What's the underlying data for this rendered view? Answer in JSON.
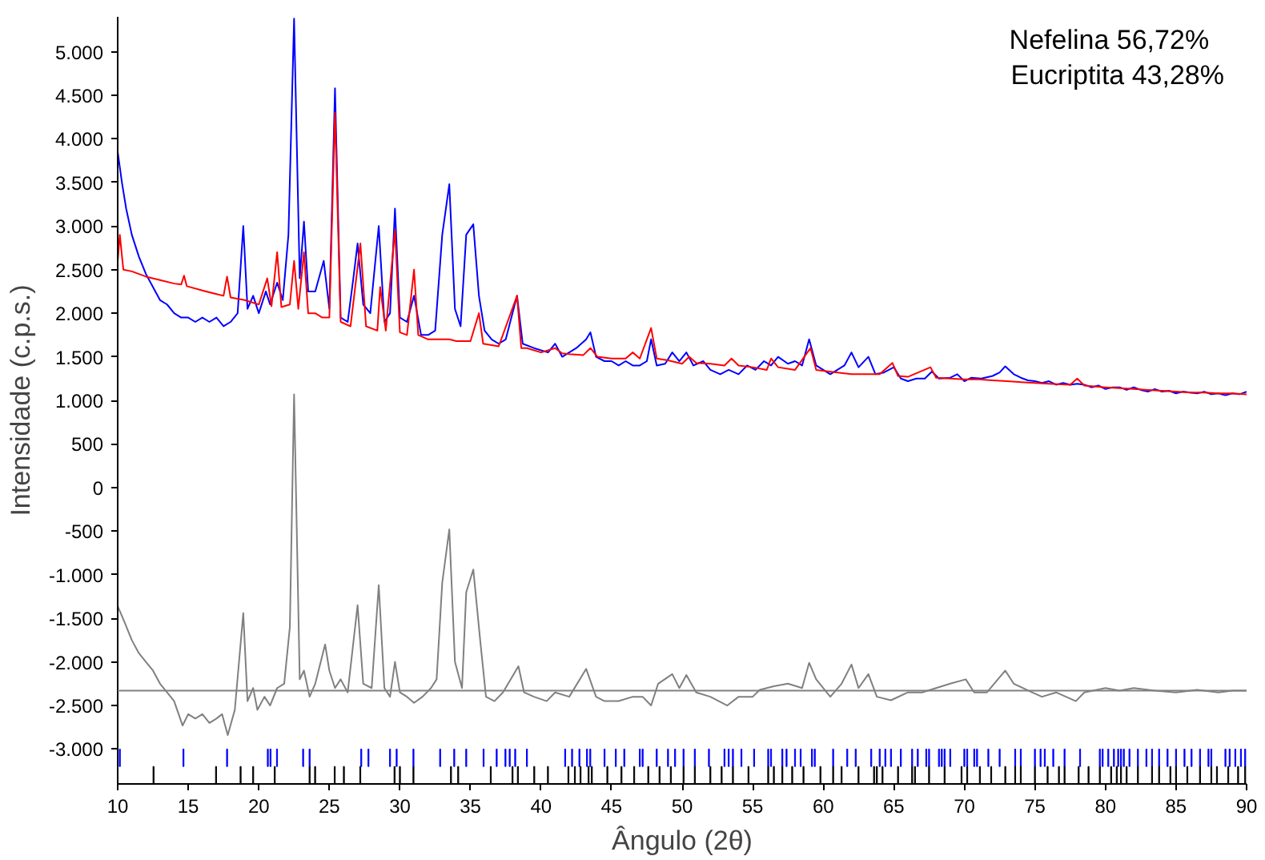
{
  "chart_data": {
    "type": "line",
    "xlabel": "Ângulo (2θ)",
    "ylabel": "Intensidade (c.p.s.)",
    "annotations": [
      "Nefelina   56,72%",
      "Eucriptita 43,28%"
    ],
    "xlim": [
      10,
      90
    ],
    "ylim": [
      -3400,
      5400
    ],
    "xticks": [
      10,
      15,
      20,
      25,
      30,
      35,
      40,
      45,
      50,
      55,
      60,
      65,
      70,
      75,
      80,
      85,
      90
    ],
    "yticks": [
      {
        "value": -3000,
        "label": "-3.000"
      },
      {
        "value": -2500,
        "label": "-2.500"
      },
      {
        "value": -2000,
        "label": "-2.000"
      },
      {
        "value": -1500,
        "label": "-1.500"
      },
      {
        "value": -1000,
        "label": "-1.000"
      },
      -500,
      0,
      500,
      {
        "value": 1000,
        "label": "1.000"
      },
      {
        "value": 1500,
        "label": "1.500"
      },
      {
        "value": 2000,
        "label": "2.000"
      },
      {
        "value": 2500,
        "label": "2.500"
      },
      {
        "value": 3000,
        "label": "3.000"
      },
      {
        "value": 3500,
        "label": "3.500"
      },
      {
        "value": 4000,
        "label": "4.000"
      },
      {
        "value": 4500,
        "label": "4.500"
      },
      {
        "value": 5000,
        "label": "5.000"
      }
    ],
    "ref_lines": [
      {
        "axis": "y",
        "value": -2330,
        "color": "#808080"
      }
    ],
    "series": [
      {
        "color": "#0000ff",
        "x": [
          10,
          10.3,
          10.6,
          11,
          11.5,
          12,
          12.5,
          13,
          13.5,
          14,
          14.5,
          15,
          15.5,
          16,
          16.5,
          17,
          17.5,
          18,
          18.5,
          18.9,
          19.2,
          19.6,
          20,
          20.5,
          20.8,
          21.3,
          21.7,
          22.1,
          22.5,
          22.9,
          23.2,
          23.5,
          24,
          24.6,
          25,
          25.4,
          25.8,
          26.3,
          26.7,
          27,
          27.4,
          27.9,
          28.5,
          28.9,
          29.3,
          29.65,
          30,
          30.5,
          31,
          31.5,
          32,
          32.5,
          33,
          33.5,
          33.9,
          34.3,
          34.7,
          35.2,
          35.6,
          36,
          36.5,
          37,
          37.5,
          38.3,
          38.7,
          39.5,
          40.5,
          41,
          41.5,
          42,
          42.5,
          43.2,
          43.5,
          43.9,
          44.5,
          45,
          45.5,
          46,
          46.5,
          47,
          47.5,
          47.8,
          48.2,
          48.8,
          49.3,
          49.8,
          50.3,
          50.8,
          51.5,
          52,
          52.7,
          53.3,
          54,
          54.6,
          55.2,
          55.8,
          56.3,
          56.8,
          57.5,
          58,
          58.5,
          59,
          59.5,
          60,
          60.5,
          61,
          61.5,
          62,
          62.5,
          63.2,
          63.7,
          64.3,
          65,
          65.5,
          66,
          66.6,
          67.2,
          67.7,
          68.2,
          69,
          69.5,
          70,
          70.5,
          71.2,
          72,
          72.5,
          72.9,
          73.5,
          74,
          74.5,
          75,
          75.5,
          76,
          76.5,
          77,
          77.5,
          78,
          78.5,
          79,
          79.5,
          80,
          80.5,
          81,
          81.5,
          82,
          82.5,
          83,
          83.5,
          84,
          84.5,
          85,
          85.5,
          86,
          86.5,
          87,
          87.5,
          88,
          88.5,
          89,
          89.5,
          90
        ],
        "values": [
          3850,
          3500,
          3200,
          2900,
          2650,
          2450,
          2300,
          2150,
          2100,
          2000,
          1950,
          1950,
          1900,
          1950,
          1900,
          1950,
          1850,
          1900,
          2000,
          3000,
          2050,
          2200,
          2000,
          2250,
          2100,
          2350,
          2150,
          2900,
          5380,
          2400,
          3050,
          2250,
          2250,
          2600,
          2050,
          4580,
          1950,
          1900,
          2400,
          2800,
          2100,
          2000,
          3000,
          1900,
          2000,
          3200,
          1950,
          1900,
          2200,
          1750,
          1750,
          1800,
          2900,
          3480,
          2050,
          1850,
          2900,
          3020,
          2200,
          1800,
          1700,
          1650,
          1700,
          2200,
          1650,
          1600,
          1550,
          1650,
          1500,
          1550,
          1600,
          1700,
          1780,
          1500,
          1450,
          1450,
          1400,
          1450,
          1400,
          1400,
          1450,
          1700,
          1400,
          1420,
          1550,
          1450,
          1550,
          1400,
          1450,
          1350,
          1300,
          1350,
          1300,
          1400,
          1350,
          1450,
          1400,
          1500,
          1420,
          1450,
          1400,
          1700,
          1400,
          1350,
          1300,
          1350,
          1400,
          1550,
          1380,
          1500,
          1300,
          1320,
          1380,
          1250,
          1220,
          1250,
          1250,
          1330,
          1250,
          1260,
          1300,
          1220,
          1260,
          1250,
          1280,
          1320,
          1390,
          1300,
          1260,
          1230,
          1220,
          1200,
          1220,
          1180,
          1200,
          1180,
          1190,
          1180,
          1150,
          1170,
          1130,
          1150,
          1150,
          1120,
          1150,
          1120,
          1100,
          1130,
          1100,
          1110,
          1080,
          1100,
          1090,
          1080,
          1100,
          1070,
          1080,
          1060,
          1080,
          1070,
          1100
        ]
      },
      {
        "color": "#ff0000",
        "x": [
          10,
          10.15,
          10.4,
          11,
          12,
          13,
          14,
          14.5,
          14.7,
          14.9,
          16,
          17,
          17.5,
          17.75,
          18,
          19,
          20,
          20.6,
          20.9,
          21.3,
          21.6,
          22.2,
          22.5,
          22.8,
          23.2,
          23.5,
          24,
          24.5,
          25,
          25.4,
          25.8,
          26.5,
          27.2,
          27.6,
          28.4,
          28.6,
          29,
          29.65,
          30,
          30.5,
          31,
          31.3,
          32,
          33,
          33.5,
          34,
          34.6,
          35,
          35.6,
          35.9,
          37,
          38.3,
          38.6,
          39,
          40,
          41,
          41.5,
          42,
          43,
          43.5,
          44,
          45,
          46,
          46.5,
          47,
          47.8,
          48.2,
          49,
          50,
          50.5,
          51,
          52,
          53,
          53.5,
          54,
          55,
          56,
          56.3,
          56.8,
          58,
          59.1,
          59.5,
          61,
          62,
          63,
          64,
          64.9,
          65.3,
          66,
          67.6,
          68,
          69,
          70,
          71,
          72,
          73,
          74,
          75,
          76,
          77.5,
          78,
          78.5,
          80,
          81,
          82,
          83,
          84,
          85,
          86,
          87,
          88,
          89,
          90
        ],
        "values": [
          2600,
          2900,
          2500,
          2480,
          2420,
          2380,
          2340,
          2330,
          2430,
          2310,
          2260,
          2220,
          2200,
          2420,
          2180,
          2150,
          2100,
          2400,
          2080,
          2700,
          2070,
          2100,
          2600,
          2050,
          2700,
          2000,
          2000,
          1950,
          1950,
          4300,
          1900,
          1850,
          2800,
          1850,
          1800,
          2300,
          1800,
          2950,
          1780,
          1750,
          2500,
          1750,
          1700,
          1700,
          1700,
          1680,
          1680,
          1680,
          2000,
          1650,
          1620,
          2200,
          1600,
          1600,
          1550,
          1600,
          1540,
          1530,
          1520,
          1600,
          1500,
          1480,
          1480,
          1550,
          1480,
          1830,
          1480,
          1460,
          1420,
          1500,
          1430,
          1420,
          1400,
          1480,
          1400,
          1380,
          1350,
          1480,
          1380,
          1350,
          1600,
          1350,
          1320,
          1300,
          1300,
          1300,
          1430,
          1280,
          1270,
          1380,
          1260,
          1250,
          1240,
          1240,
          1230,
          1220,
          1210,
          1200,
          1190,
          1180,
          1250,
          1170,
          1150,
          1140,
          1130,
          1120,
          1110,
          1100,
          1090,
          1090,
          1080,
          1080,
          1070
        ]
      },
      {
        "color": "#808080",
        "x": [
          10,
          10.5,
          11,
          11.5,
          12,
          12.5,
          13,
          13.5,
          14,
          14.6,
          15,
          15.5,
          16,
          16.5,
          17,
          17.4,
          17.8,
          18.3,
          18.9,
          19.2,
          19.6,
          19.9,
          20.4,
          20.8,
          21.3,
          21.8,
          22.2,
          22.5,
          22.9,
          23.2,
          23.6,
          24,
          24.7,
          25,
          25.4,
          25.8,
          26.3,
          27,
          27.4,
          28,
          28.5,
          28.9,
          29.3,
          29.65,
          30,
          30.5,
          31,
          31.6,
          32.2,
          32.6,
          33,
          33.5,
          33.9,
          34.4,
          34.7,
          35.2,
          35.7,
          36.1,
          36.7,
          37.3,
          38.4,
          38.8,
          39.5,
          40.4,
          41,
          42,
          43.2,
          43.9,
          44.5,
          45.5,
          46.5,
          47.2,
          47.8,
          48.3,
          49.3,
          49.8,
          50.3,
          51,
          52,
          53.2,
          54,
          55,
          55.5,
          56.5,
          57.5,
          58.5,
          59,
          59.5,
          60.5,
          61.3,
          62,
          62.5,
          63.2,
          63.8,
          64.8,
          66,
          67,
          68,
          69,
          70.1,
          70.7,
          71.6,
          72.9,
          73.5,
          74.8,
          75.5,
          76.5,
          77.9,
          78.5,
          80,
          81,
          82,
          83.5,
          85,
          86.5,
          88,
          89,
          90
        ],
        "values": [
          -1360,
          -1550,
          -1750,
          -1900,
          -2000,
          -2100,
          -2250,
          -2350,
          -2450,
          -2730,
          -2600,
          -2650,
          -2600,
          -2700,
          -2650,
          -2600,
          -2840,
          -2550,
          -1440,
          -2450,
          -2300,
          -2550,
          -2400,
          -2500,
          -2300,
          -2250,
          -1600,
          1070,
          -2200,
          -2100,
          -2400,
          -2250,
          -1800,
          -2100,
          -2300,
          -2200,
          -2350,
          -1350,
          -2250,
          -2300,
          -1120,
          -2300,
          -2400,
          -2000,
          -2350,
          -2400,
          -2470,
          -2400,
          -2300,
          -2200,
          -1090,
          -480,
          -2000,
          -2300,
          -1200,
          -940,
          -1770,
          -2400,
          -2450,
          -2350,
          -2050,
          -2350,
          -2400,
          -2450,
          -2350,
          -2400,
          -2080,
          -2400,
          -2450,
          -2450,
          -2400,
          -2400,
          -2500,
          -2250,
          -2140,
          -2300,
          -2150,
          -2350,
          -2400,
          -2500,
          -2400,
          -2400,
          -2320,
          -2280,
          -2250,
          -2300,
          -2010,
          -2200,
          -2400,
          -2250,
          -2030,
          -2300,
          -2140,
          -2400,
          -2440,
          -2350,
          -2350,
          -2300,
          -2250,
          -2200,
          -2350,
          -2350,
          -2100,
          -2250,
          -2350,
          -2400,
          -2350,
          -2450,
          -2350,
          -2300,
          -2330,
          -2300,
          -2330,
          -2350,
          -2320,
          -2350,
          -2330,
          -2330
        ]
      },
      {
        "type": "bar",
        "color": "#0000ff",
        "x": [
          10.15,
          14.66,
          17.75,
          20.64,
          20.83,
          21.29,
          23.14,
          23.6,
          27.26,
          27.77,
          29.3,
          29.77,
          30.96,
          32.85,
          33.85,
          34.7,
          35.93,
          36.86,
          37.48,
          37.78,
          38.17,
          39.0,
          41.71,
          42.2,
          42.72,
          43.26,
          43.49,
          44.5,
          45.3,
          45.9,
          47.0,
          47.2,
          48.2,
          49.0,
          49.5,
          50.1,
          50.9,
          51.9,
          53.0,
          53.3,
          53.6,
          54.2,
          55.1,
          56.1,
          56.3,
          57.1,
          57.4,
          58.0,
          58.4,
          59.2,
          59.4,
          60.7,
          61.7,
          62.3,
          63.4,
          64.0,
          64.4,
          64.8,
          65.5,
          66.3,
          66.7,
          67.3,
          67.5,
          68.2,
          68.4,
          68.6,
          69.0,
          70.0,
          70.2,
          70.7,
          70.9,
          71.7,
          72.5,
          73.6,
          74.0,
          75.0,
          75.4,
          75.7,
          76.3,
          77.1,
          78.2,
          79.6,
          79.8,
          80.2,
          80.6,
          80.9,
          81.1,
          81.3,
          81.7,
          82.3,
          82.9,
          83.3,
          83.8,
          84.4,
          85.0,
          85.6,
          86.1,
          86.7,
          87.3,
          87.5,
          88.5,
          88.8,
          89.2,
          89.6,
          89.9
        ],
        "values": [
          200,
          200,
          200,
          200,
          200,
          200,
          200,
          200,
          200,
          200,
          200,
          200,
          200,
          200,
          200,
          200,
          200,
          200,
          200,
          200,
          200,
          200,
          200,
          200,
          200,
          200,
          200,
          200,
          200,
          200,
          200,
          200,
          200,
          200,
          200,
          200,
          200,
          200,
          200,
          200,
          200,
          200,
          200,
          200,
          200,
          200,
          200,
          200,
          200,
          200,
          200,
          200,
          200,
          200,
          200,
          200,
          200,
          200,
          200,
          200,
          200,
          200,
          200,
          200,
          200,
          200,
          200,
          200,
          200,
          200,
          200,
          200,
          200,
          200,
          200,
          200,
          200,
          200,
          200,
          200,
          200,
          200,
          200,
          200,
          200,
          200,
          200,
          200,
          200,
          200,
          200,
          200,
          200,
          200,
          200,
          200,
          200,
          200,
          200,
          200,
          200,
          200,
          200,
          200,
          200
        ],
        "base": [
          -3200,
          -3200,
          -3200,
          -3200,
          -3200,
          -3200,
          -3200,
          -3200,
          -3200,
          -3200,
          -3200,
          -3200,
          -3200,
          -3200,
          -3200,
          -3200,
          -3200,
          -3200,
          -3200,
          -3200,
          -3200,
          -3200,
          -3200,
          -3200,
          -3200,
          -3200,
          -3200,
          -3200,
          -3200,
          -3200,
          -3200,
          -3200,
          -3200,
          -3200,
          -3200,
          -3200,
          -3200,
          -3200,
          -3200,
          -3200,
          -3200,
          -3200,
          -3200,
          -3200,
          -3200,
          -3200,
          -3200,
          -3200,
          -3200,
          -3200,
          -3200,
          -3200,
          -3200,
          -3200,
          -3200,
          -3200,
          -3200,
          -3200,
          -3200,
          -3200,
          -3200,
          -3200,
          -3200,
          -3200,
          -3200,
          -3200,
          -3200,
          -3200,
          -3200,
          -3200,
          -3200,
          -3200,
          -3200,
          -3200,
          -3200,
          -3200,
          -3200,
          -3200,
          -3200,
          -3200,
          -3200,
          -3200,
          -3200,
          -3200,
          -3200,
          -3200,
          -3200,
          -3200,
          -3200,
          -3200,
          -3200,
          -3200,
          -3200,
          -3200,
          -3200,
          -3200,
          -3200,
          -3200,
          -3200,
          -3200,
          -3200,
          -3200,
          -3200,
          -3200,
          -3200
        ]
      },
      {
        "type": "bar",
        "color": "#000000",
        "x": [
          12.54,
          16.97,
          18.71,
          19.6,
          21.13,
          23.6,
          23.99,
          25.38,
          26.03,
          27.19,
          29.62,
          30.0,
          30.96,
          33.62,
          34.13,
          36.44,
          37.98,
          38.36,
          39.52,
          40.49,
          41.94,
          42.4,
          42.8,
          43.37,
          43.6,
          44.7,
          45.7,
          46.6,
          47.6,
          48.4,
          49.2,
          50.1,
          50.9,
          52.0,
          52.8,
          53.6,
          54.7,
          56.1,
          56.5,
          57.1,
          57.8,
          58.6,
          59.8,
          60.7,
          61.3,
          62.5,
          63.6,
          63.8,
          64.2,
          65.3,
          66.3,
          66.5,
          67.5,
          68.6,
          69.8,
          70.2,
          71.1,
          71.9,
          72.9,
          73.6,
          74.0,
          75.0,
          75.9,
          76.7,
          77.1,
          78.1,
          78.8,
          79.6,
          80.4,
          80.8,
          81.1,
          81.5,
          82.3,
          83.3,
          83.8,
          84.6,
          85.0,
          85.8,
          86.7,
          87.5,
          87.9,
          88.7,
          89.4,
          89.9
        ],
        "values": [
          200,
          200,
          200,
          200,
          200,
          200,
          200,
          200,
          200,
          200,
          200,
          200,
          200,
          200,
          200,
          200,
          200,
          200,
          200,
          200,
          200,
          200,
          200,
          200,
          200,
          200,
          200,
          200,
          200,
          200,
          200,
          200,
          200,
          200,
          200,
          200,
          200,
          200,
          200,
          200,
          200,
          200,
          200,
          200,
          200,
          200,
          200,
          200,
          200,
          200,
          200,
          200,
          200,
          200,
          200,
          200,
          200,
          200,
          200,
          200,
          200,
          200,
          200,
          200,
          200,
          200,
          200,
          200,
          200,
          200,
          200,
          200,
          200,
          200,
          200,
          200,
          200,
          200,
          200,
          200,
          200,
          200,
          200,
          200
        ],
        "base": [
          -3400,
          -3400,
          -3400,
          -3400,
          -3400,
          -3400,
          -3400,
          -3400,
          -3400,
          -3400,
          -3400,
          -3400,
          -3400,
          -3400,
          -3400,
          -3400,
          -3400,
          -3400,
          -3400,
          -3400,
          -3400,
          -3400,
          -3400,
          -3400,
          -3400,
          -3400,
          -3400,
          -3400,
          -3400,
          -3400,
          -3400,
          -3400,
          -3400,
          -3400,
          -3400,
          -3400,
          -3400,
          -3400,
          -3400,
          -3400,
          -3400,
          -3400,
          -3400,
          -3400,
          -3400,
          -3400,
          -3400,
          -3400,
          -3400,
          -3400,
          -3400,
          -3400,
          -3400,
          -3400,
          -3400,
          -3400,
          -3400,
          -3400,
          -3400,
          -3400,
          -3400,
          -3400,
          -3400,
          -3400,
          -3400,
          -3400,
          -3400,
          -3400,
          -3400,
          -3400,
          -3400,
          -3400,
          -3400,
          -3400,
          -3400,
          -3400,
          -3400,
          -3400,
          -3400,
          -3400,
          -3400,
          -3400,
          -3400,
          -3400
        ]
      }
    ]
  }
}
